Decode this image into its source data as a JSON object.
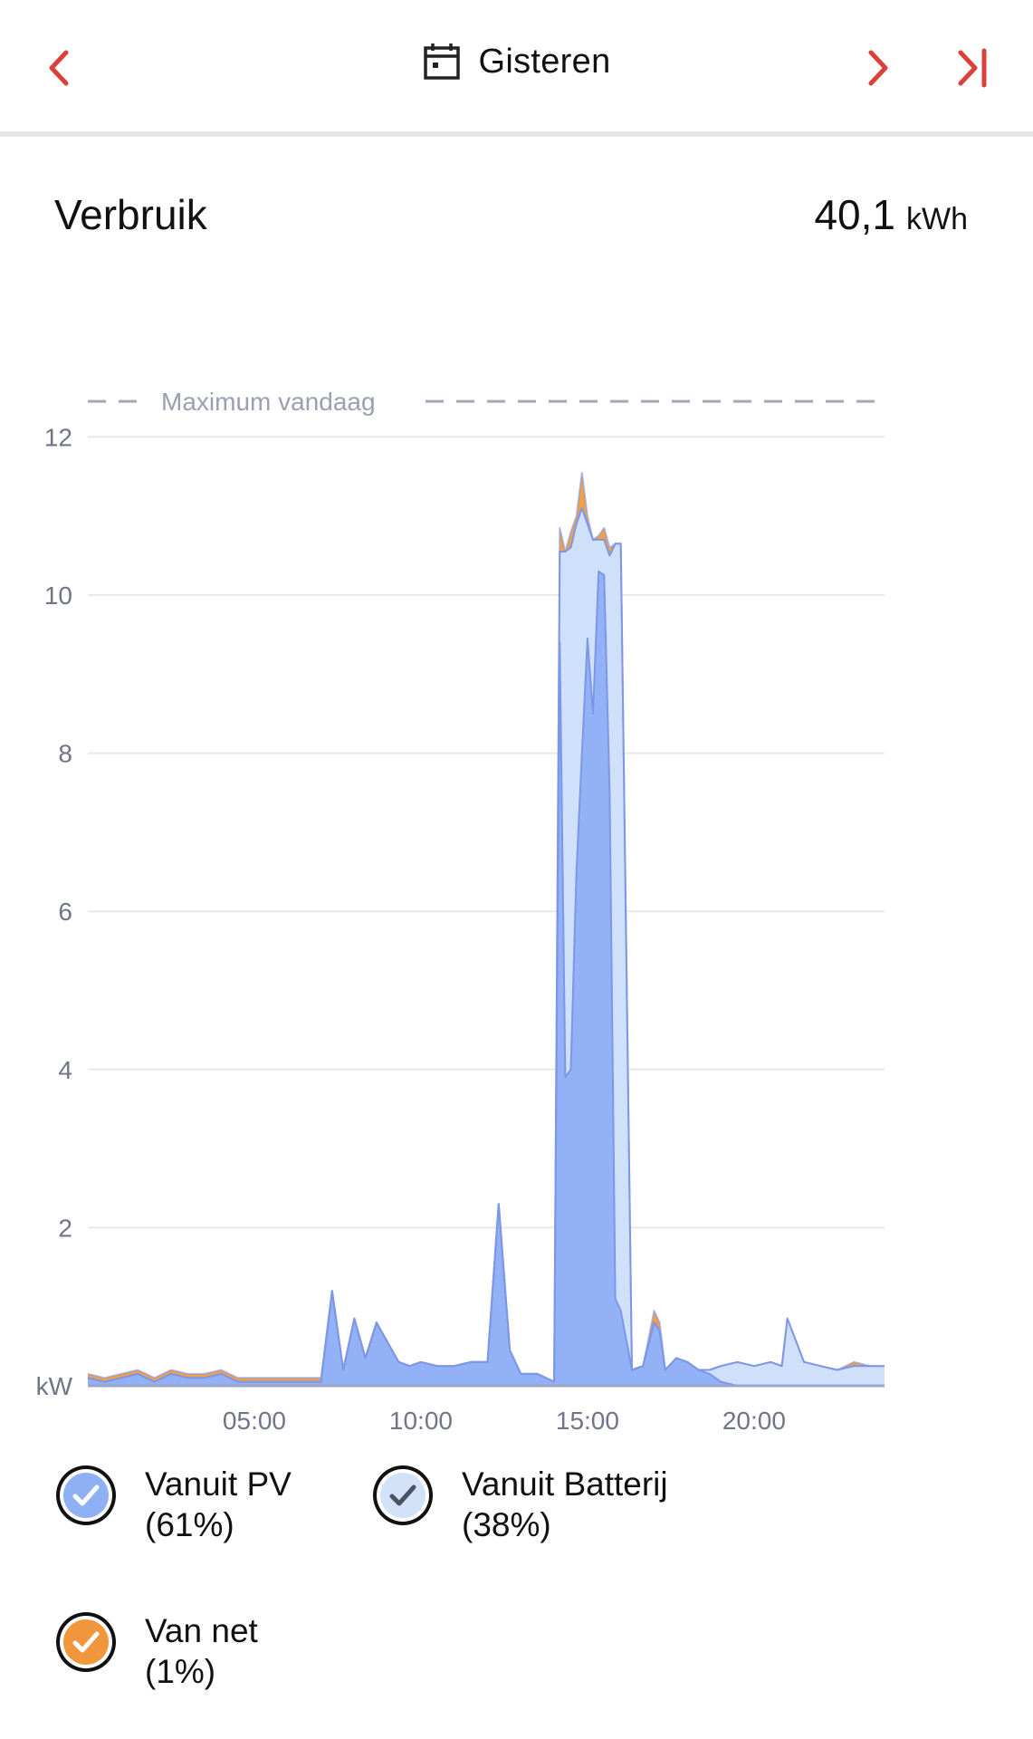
{
  "header": {
    "date_label": "Gisteren"
  },
  "summary": {
    "title": "Verbruik",
    "total_value": "40,1",
    "total_unit": "kWh"
  },
  "chart_data": {
    "type": "area",
    "stacked": true,
    "max_line_label": "Maximum vandaag",
    "max_line_value": 12.45,
    "ylabel": "kW",
    "ylim": [
      0,
      12
    ],
    "yticks": [
      2,
      4,
      6,
      8,
      10,
      12
    ],
    "xlim": [
      "00:00",
      "23:55"
    ],
    "xticks": [
      "05:00",
      "10:00",
      "15:00",
      "20:00"
    ],
    "grid": true,
    "x": [
      "00:00",
      "00:30",
      "01:00",
      "01:30",
      "02:00",
      "02:30",
      "03:00",
      "03:30",
      "04:00",
      "04:30",
      "05:00",
      "05:30",
      "06:00",
      "06:30",
      "07:00",
      "07:20",
      "07:40",
      "08:00",
      "08:20",
      "08:40",
      "09:00",
      "09:20",
      "09:40",
      "10:00",
      "10:30",
      "11:00",
      "11:30",
      "12:00",
      "12:20",
      "12:40",
      "13:00",
      "13:30",
      "14:00",
      "14:10",
      "14:20",
      "14:30",
      "14:40",
      "14:50",
      "15:00",
      "15:10",
      "15:20",
      "15:30",
      "15:40",
      "15:50",
      "16:00",
      "16:20",
      "16:40",
      "17:00",
      "17:10",
      "17:20",
      "17:40",
      "18:00",
      "18:20",
      "18:40",
      "19:00",
      "19:30",
      "20:00",
      "20:30",
      "20:50",
      "21:00",
      "21:30",
      "22:00",
      "22:30",
      "23:00",
      "23:30",
      "23:55"
    ],
    "series": [
      {
        "name": "Vanuit PV",
        "color": "#93b1f6",
        "values": [
          0.1,
          0.05,
          0.1,
          0.15,
          0.05,
          0.15,
          0.1,
          0.1,
          0.15,
          0.05,
          0.05,
          0.05,
          0.05,
          0.05,
          0.05,
          1.2,
          0.2,
          0.85,
          0.35,
          0.8,
          0.55,
          0.3,
          0.25,
          0.3,
          0.25,
          0.25,
          0.3,
          0.3,
          2.3,
          0.45,
          0.15,
          0.15,
          0.05,
          9.4,
          3.9,
          4.0,
          6.5,
          8.0,
          9.45,
          8.5,
          10.3,
          10.25,
          7.5,
          1.1,
          0.95,
          0.2,
          0.25,
          0.8,
          0.7,
          0.2,
          0.35,
          0.3,
          0.2,
          0.15,
          0.05,
          0.0,
          0.0,
          0.0,
          0.0,
          0.0,
          0.0,
          0.0,
          0.0,
          0.0,
          0.0,
          0.0
        ]
      },
      {
        "name": "Vanuit Batterij",
        "color": "#cfe0fa",
        "values": [
          0.0,
          0.0,
          0.0,
          0.0,
          0.0,
          0.0,
          0.0,
          0.0,
          0.0,
          0.0,
          0.0,
          0.0,
          0.0,
          0.0,
          0.0,
          0.0,
          0.0,
          0.0,
          0.0,
          0.0,
          0.0,
          0.0,
          0.0,
          0.0,
          0.0,
          0.0,
          0.0,
          0.0,
          0.0,
          0.0,
          0.0,
          0.0,
          0.0,
          1.15,
          6.65,
          6.6,
          4.4,
          3.1,
          1.45,
          2.2,
          0.4,
          0.45,
          3.0,
          9.55,
          9.7,
          0.0,
          0.0,
          0.0,
          0.0,
          0.0,
          0.0,
          0.0,
          0.0,
          0.05,
          0.2,
          0.3,
          0.25,
          0.3,
          0.25,
          0.85,
          0.3,
          0.25,
          0.2,
          0.25,
          0.25,
          0.25
        ]
      },
      {
        "name": "Van net",
        "color": "#f4a043",
        "values": [
          0.05,
          0.05,
          0.05,
          0.05,
          0.05,
          0.05,
          0.05,
          0.05,
          0.05,
          0.05,
          0.05,
          0.05,
          0.05,
          0.05,
          0.05,
          0.0,
          0.0,
          0.0,
          0.0,
          0.0,
          0.0,
          0.0,
          0.0,
          0.0,
          0.0,
          0.0,
          0.0,
          0.0,
          0.0,
          0.0,
          0.0,
          0.0,
          0.0,
          0.3,
          0.0,
          0.2,
          0.1,
          0.45,
          0.1,
          0.0,
          0.05,
          0.15,
          0.1,
          0.0,
          0.0,
          0.0,
          0.0,
          0.15,
          0.1,
          0.0,
          0.0,
          0.0,
          0.0,
          0.0,
          0.0,
          0.0,
          0.0,
          0.0,
          0.0,
          0.0,
          0.0,
          0.0,
          0.0,
          0.05,
          0.0,
          0.0
        ]
      }
    ],
    "line_color": "#7e96e6",
    "grid_color": "#e8e8ee",
    "tick_color": "#6f7585"
  },
  "legend": [
    {
      "label": "Vanuit PV",
      "pct": "(61%)",
      "circle_fill": "#8eb1f5",
      "check_color": "#ffffff"
    },
    {
      "label": "Vanuit Batterij",
      "pct": "(38%)",
      "circle_fill": "#d3e1f9",
      "check_color": "#4b5261"
    },
    {
      "label": "Van net",
      "pct": "(1%)",
      "circle_fill": "#f0973e",
      "check_color": "#ffffff"
    }
  ],
  "colors": {
    "accent": "#d9413a",
    "outline": "#111111"
  }
}
